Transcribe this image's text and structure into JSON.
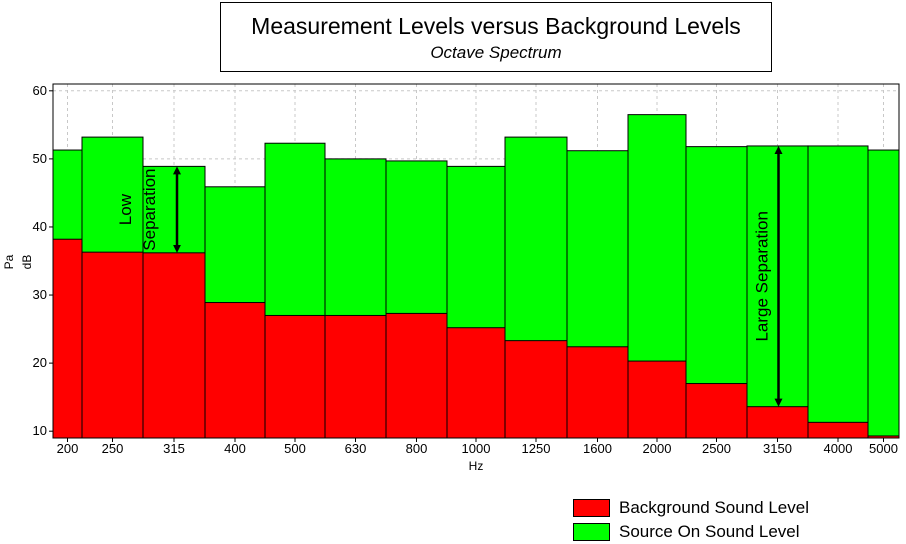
{
  "chart_data": {
    "type": "bar",
    "title": "Measurement Levels versus Background Levels",
    "subtitle": "Octave Spectrum",
    "xlabel": "Hz",
    "ylabel_line1": "Pa",
    "ylabel_line2": "dB",
    "ylim": [
      9,
      61
    ],
    "yticks": [
      10,
      20,
      30,
      40,
      50,
      60
    ],
    "grid": true,
    "stacked": false,
    "categories": [
      "200",
      "250",
      "315",
      "400",
      "500",
      "630",
      "800",
      "1000",
      "1250",
      "1600",
      "2000",
      "2500",
      "3150",
      "4000",
      "5000"
    ],
    "series": [
      {
        "name": "Background Sound Level",
        "color": "#ff0000",
        "values": [
          38.2,
          36.3,
          36.2,
          28.9,
          27.0,
          27.0,
          27.3,
          25.2,
          23.3,
          22.4,
          20.3,
          17.0,
          13.6,
          11.3,
          9.3
        ]
      },
      {
        "name": "Source On Sound Level",
        "color": "#00ff00",
        "values": [
          51.3,
          53.2,
          48.9,
          45.9,
          52.3,
          50.0,
          49.7,
          48.9,
          53.2,
          51.2,
          56.5,
          51.8,
          51.9,
          51.9,
          51.3
        ]
      }
    ],
    "annotations": [
      {
        "text": "Low Separation",
        "line1": "Low",
        "line2": "Separation",
        "category": "315",
        "from": 36.2,
        "to": 48.9
      },
      {
        "text": "Large Separation",
        "category": "3150",
        "from": 13.6,
        "to": 51.9
      }
    ],
    "legend_position": "bottom-right"
  }
}
